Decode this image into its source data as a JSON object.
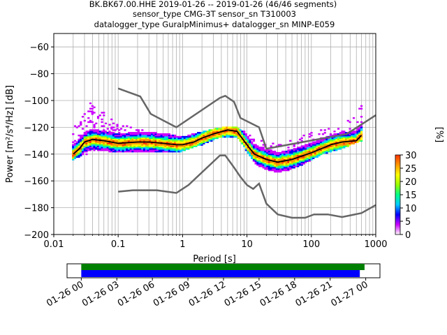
{
  "title": {
    "line1": "BK.BK67.00.HHE   2019-01-26 -- 2019-01-26  (46/46 segments)",
    "line2": "sensor_type CMG-3T sensor_sn T310003",
    "line3": "datalogger_type GuralpMinimus+ datalogger_sn MINP-E059"
  },
  "chart_data": [
    {
      "type": "heatmap",
      "subtype": "probabilistic power spectral density",
      "xlabel": "Period [s]",
      "ylabel": "Power [m²/s⁴/Hz] [dB]",
      "xscale": "log",
      "xlim": [
        0.01,
        1000
      ],
      "ylim": [
        -200,
        -50
      ],
      "xticks": [
        {
          "value": 0.01,
          "label": "0.01"
        },
        {
          "value": 0.1,
          "label": "0.1"
        },
        {
          "value": 1,
          "label": "1"
        },
        {
          "value": 10,
          "label": "10"
        },
        {
          "value": 100,
          "label": "100"
        },
        {
          "value": 1000,
          "label": "1000"
        }
      ],
      "yticks": [
        {
          "value": -60,
          "label": "−60"
        },
        {
          "value": -80,
          "label": "−80"
        },
        {
          "value": -100,
          "label": "−100"
        },
        {
          "value": -120,
          "label": "−120"
        },
        {
          "value": -140,
          "label": "−140"
        },
        {
          "value": -160,
          "label": "−160"
        },
        {
          "value": -180,
          "label": "−180"
        },
        {
          "value": -200,
          "label": "−200"
        }
      ],
      "grid": true,
      "noise_models": {
        "color": "#666666",
        "high": [
          [
            0.1,
            -91
          ],
          [
            0.22,
            -97
          ],
          [
            0.32,
            -110
          ],
          [
            0.8,
            -120
          ],
          [
            3.8,
            -98
          ],
          [
            4.6,
            -96.5
          ],
          [
            6.3,
            -101
          ],
          [
            7.9,
            -113
          ],
          [
            15.4,
            -120
          ],
          [
            20,
            -136
          ],
          [
            354,
            -125
          ],
          [
            1000,
            -111
          ]
        ],
        "low": [
          [
            0.1,
            -168
          ],
          [
            0.17,
            -167
          ],
          [
            0.4,
            -167
          ],
          [
            0.8,
            -169
          ],
          [
            1.24,
            -163
          ],
          [
            3.8,
            -141
          ],
          [
            4.6,
            -141
          ],
          [
            6.3,
            -150
          ],
          [
            7.9,
            -157
          ],
          [
            10,
            -163
          ],
          [
            12.5,
            -166
          ],
          [
            15.4,
            -162
          ],
          [
            20,
            -177
          ],
          [
            30,
            -185
          ],
          [
            50,
            -187.5
          ],
          [
            80,
            -187.5
          ],
          [
            110,
            -185
          ],
          [
            180,
            -185
          ],
          [
            300,
            -187
          ],
          [
            600,
            -184
          ],
          [
            1000,
            -178
          ]
        ]
      },
      "median": {
        "color": "#000000",
        "points": [
          [
            0.02,
            -140
          ],
          [
            0.025,
            -136
          ],
          [
            0.03,
            -131
          ],
          [
            0.04,
            -129
          ],
          [
            0.06,
            -130
          ],
          [
            0.1,
            -132
          ],
          [
            0.2,
            -131
          ],
          [
            0.3,
            -131
          ],
          [
            0.5,
            -132
          ],
          [
            0.8,
            -133
          ],
          [
            1,
            -133
          ],
          [
            1.5,
            -131
          ],
          [
            2,
            -128
          ],
          [
            3,
            -125
          ],
          [
            5,
            -122
          ],
          [
            7,
            -123
          ],
          [
            10,
            -133
          ],
          [
            13,
            -140
          ],
          [
            20,
            -144
          ],
          [
            30,
            -146
          ],
          [
            50,
            -144
          ],
          [
            100,
            -139
          ],
          [
            200,
            -133
          ],
          [
            300,
            -131
          ],
          [
            500,
            -130
          ],
          [
            600,
            -126
          ]
        ]
      },
      "envelopes": {
        "upper": [
          [
            0.02,
            -120
          ],
          [
            0.028,
            -110
          ],
          [
            0.035,
            -100
          ],
          [
            0.05,
            -106
          ],
          [
            0.1,
            -116
          ],
          [
            0.2,
            -121
          ],
          [
            0.5,
            -124
          ],
          [
            1,
            -127
          ],
          [
            2,
            -123
          ],
          [
            4,
            -120
          ],
          [
            7,
            -120
          ],
          [
            13,
            -127
          ],
          [
            20,
            -132
          ],
          [
            50,
            -128
          ],
          [
            100,
            -124
          ],
          [
            200,
            -120
          ],
          [
            500,
            -112
          ],
          [
            600,
            -100
          ],
          [
            700,
            -100
          ]
        ],
        "lower": [
          [
            0.02,
            -144
          ],
          [
            0.03,
            -141
          ],
          [
            0.05,
            -137
          ],
          [
            0.1,
            -139
          ],
          [
            0.5,
            -138
          ],
          [
            1,
            -138
          ],
          [
            2,
            -133
          ],
          [
            4,
            -127
          ],
          [
            7,
            -127
          ],
          [
            10,
            -138
          ],
          [
            15,
            -150
          ],
          [
            25,
            -155
          ],
          [
            40,
            -153
          ],
          [
            80,
            -147
          ],
          [
            150,
            -140
          ],
          [
            300,
            -136
          ],
          [
            600,
            -130
          ]
        ]
      },
      "colorbar": {
        "label": "[%]",
        "range": [
          0,
          30
        ],
        "ticks": [
          "0",
          "5",
          "10",
          "15",
          "20",
          "25",
          "30"
        ],
        "colormap": [
          "#ffffff",
          "#cc00ff",
          "#0000ff",
          "#00ccff",
          "#00ff88",
          "#99ff00",
          "#ffff00",
          "#ff9900",
          "#ff3300"
        ]
      }
    },
    {
      "type": "bar",
      "subtype": "data coverage timeline",
      "time_ticks": [
        "01-26 00",
        "01-26 03",
        "01-26 06",
        "01-26 09",
        "01-26 12",
        "01-26 15",
        "01-26 18",
        "01-26 21",
        "01-27 00"
      ],
      "tick_hours": [
        0,
        3,
        6,
        9,
        12,
        15,
        18,
        21,
        24
      ],
      "xlim_hours": [
        -1.2,
        25.2
      ],
      "series": [
        {
          "color": "#008000",
          "start_hour": 0,
          "end_hour": 23.9
        },
        {
          "color": "#0000ff",
          "start_hour": 0,
          "end_hour": 23.5
        }
      ]
    }
  ]
}
